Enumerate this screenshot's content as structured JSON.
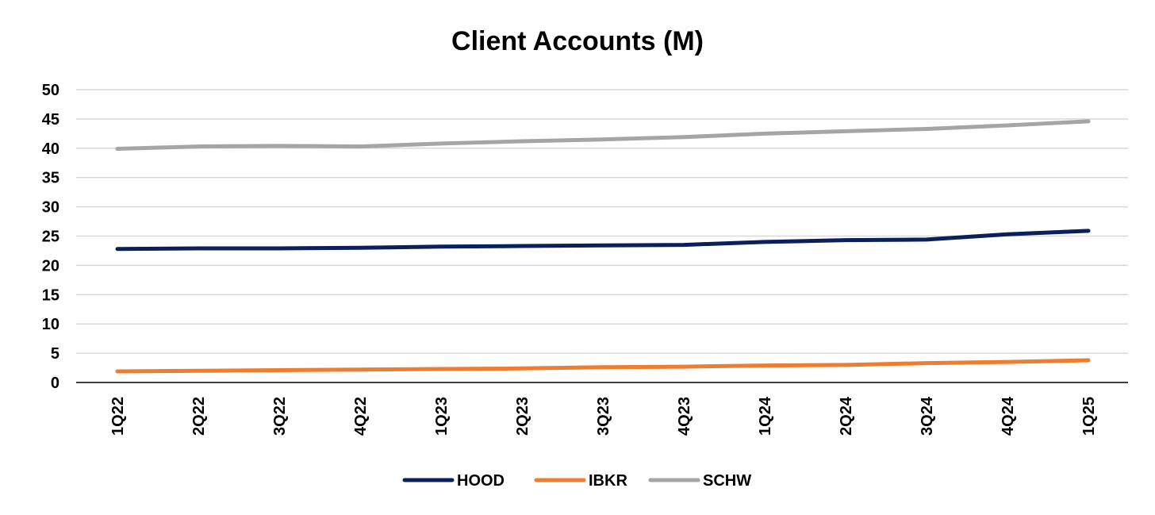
{
  "chart_data": {
    "type": "line",
    "title": "Client Accounts (M)",
    "xlabel": "",
    "ylabel": "",
    "categories": [
      "1Q22",
      "2Q22",
      "3Q22",
      "4Q22",
      "1Q23",
      "2Q23",
      "3Q23",
      "4Q23",
      "1Q24",
      "2Q24",
      "3Q24",
      "4Q24",
      "1Q25"
    ],
    "ylim": [
      0,
      50
    ],
    "yticks": [
      0,
      5,
      10,
      15,
      20,
      25,
      30,
      35,
      40,
      45,
      50
    ],
    "grid": true,
    "legend_position": "bottom",
    "series": [
      {
        "name": "HOOD",
        "color": "#0b1f5c",
        "values": [
          22.8,
          22.9,
          22.9,
          23.0,
          23.2,
          23.3,
          23.4,
          23.5,
          24.0,
          24.3,
          24.4,
          25.3,
          25.9
        ]
      },
      {
        "name": "IBKR",
        "color": "#ed7d31",
        "values": [
          1.9,
          2.0,
          2.1,
          2.2,
          2.3,
          2.4,
          2.6,
          2.7,
          2.9,
          3.0,
          3.3,
          3.5,
          3.8
        ]
      },
      {
        "name": "SCHW",
        "color": "#a5a5a5",
        "values": [
          39.9,
          40.3,
          40.4,
          40.3,
          40.8,
          41.2,
          41.5,
          41.9,
          42.5,
          42.9,
          43.3,
          43.9,
          44.6
        ]
      }
    ]
  }
}
